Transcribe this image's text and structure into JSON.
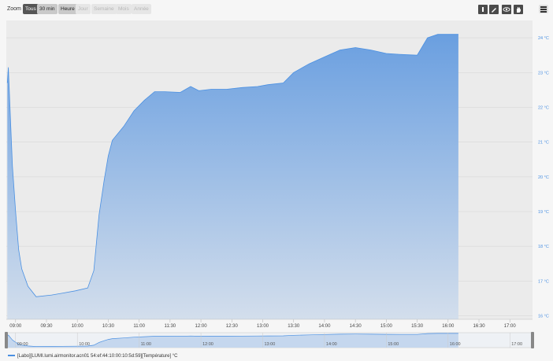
{
  "toolbar": {
    "zoom_label": "Zoom",
    "zoom_buttons": [
      {
        "label": "Tous",
        "state": "active"
      },
      {
        "label": "30 min",
        "state": "enabled"
      },
      {
        "label": "Heure",
        "state": "enabled"
      },
      {
        "label": "Jour",
        "state": "disabled"
      },
      {
        "label": "Semaine",
        "state": "disabled"
      },
      {
        "label": "Mois",
        "state": "disabled"
      },
      {
        "label": "Année",
        "state": "disabled"
      }
    ],
    "tool_icons": [
      "bar-icon",
      "pencil-icon",
      "eye-icon",
      "hand-icon"
    ],
    "menu_icon": "hamburger-menu-icon"
  },
  "colors": {
    "series": "#4a90e2",
    "area_top": "#6a9fe0",
    "area_bottom": "#d3deec",
    "axis_text": "#4a90e2",
    "plot_bg": "#ebebeb"
  },
  "chart_data": {
    "type": "area",
    "y_unit": "°C",
    "ylim": [
      15.9,
      24.5
    ],
    "y_ticks": [
      16,
      17,
      18,
      19,
      20,
      21,
      22,
      23,
      24
    ],
    "y_tick_labels": [
      "16 °C",
      "17 °C",
      "18 °C",
      "19 °C",
      "20 °C",
      "21 °C",
      "22 °C",
      "23 °C",
      "24 °C"
    ],
    "x_tick_labels": [
      "09:00",
      "09:30",
      "10:00",
      "10:30",
      "11:00",
      "11:30",
      "12:00",
      "12:30",
      "13:00",
      "13:30",
      "14:00",
      "14:30",
      "15:00",
      "15:30",
      "16:00",
      "16:30",
      "17:00"
    ],
    "xlim": [
      "08:51",
      "17:22"
    ],
    "grid": "horizontal",
    "series": [
      {
        "name": "[Labo][LUMI.lumi.airmonitor.acn01 54:ef:44:10:00:10:5d:59][Température] °C",
        "points": [
          [
            "08:52",
            22.7
          ],
          [
            "08:53",
            23.15
          ],
          [
            "08:55",
            21.7
          ],
          [
            "08:57",
            20.3
          ],
          [
            "09:00",
            19.0
          ],
          [
            "09:03",
            17.9
          ],
          [
            "09:06",
            17.35
          ],
          [
            "09:12",
            16.85
          ],
          [
            "09:20",
            16.55
          ],
          [
            "09:35",
            16.6
          ],
          [
            "09:45",
            16.65
          ],
          [
            "09:58",
            16.72
          ],
          [
            "10:10",
            16.8
          ],
          [
            "10:16",
            17.3
          ],
          [
            "10:21",
            18.9
          ],
          [
            "10:26",
            19.9
          ],
          [
            "10:30",
            20.6
          ],
          [
            "10:34",
            21.05
          ],
          [
            "10:45",
            21.45
          ],
          [
            "10:55",
            21.9
          ],
          [
            "11:05",
            22.2
          ],
          [
            "11:15",
            22.45
          ],
          [
            "11:25",
            22.45
          ],
          [
            "11:40",
            22.43
          ],
          [
            "11:50",
            22.6
          ],
          [
            "11:58",
            22.48
          ],
          [
            "12:10",
            22.52
          ],
          [
            "12:25",
            22.52
          ],
          [
            "12:40",
            22.57
          ],
          [
            "12:55",
            22.6
          ],
          [
            "13:05",
            22.65
          ],
          [
            "13:20",
            22.7
          ],
          [
            "13:30",
            23.0
          ],
          [
            "13:45",
            23.25
          ],
          [
            "14:00",
            23.45
          ],
          [
            "14:15",
            23.65
          ],
          [
            "14:30",
            23.72
          ],
          [
            "14:45",
            23.65
          ],
          [
            "15:00",
            23.55
          ],
          [
            "15:15",
            23.52
          ],
          [
            "15:30",
            23.5
          ],
          [
            "15:40",
            24.0
          ],
          [
            "15:50",
            24.1
          ],
          [
            "16:00",
            24.1
          ],
          [
            "16:10",
            24.1
          ]
        ]
      }
    ],
    "navigator_labels": [
      "09:00",
      "10:00",
      "11:00",
      "12:00",
      "13:00",
      "14:00",
      "15:00",
      "16:00",
      "17:00"
    ]
  }
}
